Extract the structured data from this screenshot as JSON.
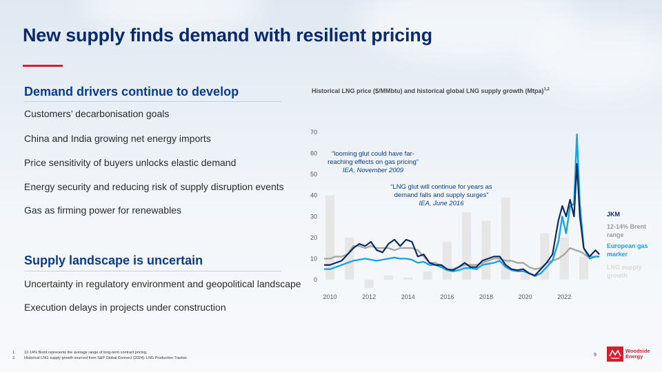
{
  "title": "New supply finds demand with resilient pricing",
  "demand": {
    "heading": "Demand drivers continue to develop",
    "items": [
      "Customers’ decarbonisation goals",
      "China and India growing net energy imports",
      "Price sensitivity of buyers unlocks elastic demand",
      "Energy security and reducing risk of supply disruption events",
      "Gas as firming power for renewables"
    ]
  },
  "supply": {
    "heading": "Supply landscape is uncertain",
    "items": [
      "Uncertainty in regulatory environment and geopolitical landscape",
      "Execution delays in projects under construction"
    ]
  },
  "chart": {
    "title": "Historical LNG price ($/MMbtu) and historical global LNG supply growth (Mtpa)",
    "title_sup": "1,2",
    "quote1": {
      "lines": [
        "“looming glut could have far-",
        "reaching effects on gas pricing”"
      ],
      "source": "IEA, November 2009"
    },
    "quote2": {
      "lines": [
        "“LNG glut will continue for years as",
        "demand falls and supply surges”"
      ],
      "source": "IEA, June 2016"
    }
  },
  "chart_data": {
    "type": "line",
    "title": "Historical LNG price ($/MMbtu) and historical global LNG supply growth (Mtpa)",
    "ylim": [
      0,
      70
    ],
    "yticks": [
      0,
      10,
      20,
      30,
      40,
      50,
      60,
      70
    ],
    "xlim": [
      2009.7,
      2023.9
    ],
    "xticks": [
      2010,
      2012,
      2014,
      2016,
      2018,
      2020,
      2022
    ],
    "bars": {
      "name": "LNG supply growth",
      "x": [
        2010,
        2011,
        2012,
        2013,
        2014,
        2015,
        2016,
        2017,
        2018,
        2019,
        2020,
        2021,
        2022,
        2023
      ],
      "values": [
        40,
        20,
        -4,
        2,
        1,
        4,
        18,
        32,
        28,
        39,
        3,
        22,
        20,
        11
      ]
    },
    "series": [
      {
        "name": "12-14% Brent range",
        "color": "#a6a6a6",
        "x": [
          2009.7,
          2010.0,
          2010.3,
          2010.6,
          2010.9,
          2011.2,
          2011.5,
          2011.8,
          2012.1,
          2012.4,
          2012.7,
          2013.0,
          2013.3,
          2013.6,
          2013.9,
          2014.2,
          2014.5,
          2014.8,
          2015.1,
          2015.4,
          2015.7,
          2016.0,
          2016.3,
          2016.6,
          2016.9,
          2017.2,
          2017.5,
          2017.8,
          2018.1,
          2018.4,
          2018.7,
          2019.0,
          2019.3,
          2019.6,
          2019.9,
          2020.2,
          2020.5,
          2020.8,
          2021.1,
          2021.4,
          2021.7,
          2022.0,
          2022.3,
          2022.6,
          2022.9,
          2023.2,
          2023.5,
          2023.8
        ],
        "values": [
          10,
          10,
          11,
          11,
          12,
          16,
          16,
          15,
          16,
          15,
          15,
          15,
          14,
          15,
          15,
          15,
          14,
          11,
          8,
          8,
          6.5,
          4.5,
          5,
          6,
          7,
          7,
          7,
          8,
          9,
          10,
          10,
          9,
          9,
          8,
          8,
          6,
          5,
          5.5,
          8,
          9,
          10,
          12,
          15,
          14,
          13,
          11,
          11,
          11
        ]
      },
      {
        "name": "European gas marker",
        "color": "#18a3e5",
        "x": [
          2009.7,
          2010.0,
          2010.3,
          2010.6,
          2010.9,
          2011.2,
          2011.5,
          2011.8,
          2012.1,
          2012.4,
          2012.7,
          2013.0,
          2013.3,
          2013.6,
          2013.9,
          2014.2,
          2014.5,
          2014.8,
          2015.1,
          2015.4,
          2015.7,
          2016.0,
          2016.3,
          2016.6,
          2016.9,
          2017.2,
          2017.5,
          2017.8,
          2018.1,
          2018.4,
          2018.7,
          2019.0,
          2019.3,
          2019.6,
          2019.9,
          2020.2,
          2020.5,
          2020.8,
          2021.1,
          2021.4,
          2021.7,
          2021.9,
          2022.1,
          2022.3,
          2022.5,
          2022.65,
          2022.8,
          2023.0,
          2023.3,
          2023.6,
          2023.8
        ],
        "values": [
          5,
          5,
          6,
          7,
          8,
          9,
          9.5,
          10,
          9.5,
          9,
          9.5,
          10,
          10.5,
          10,
          10,
          9.5,
          8,
          8.5,
          7,
          7,
          6,
          4.5,
          4,
          4.5,
          5.5,
          5.5,
          5,
          7,
          7.5,
          8,
          9,
          6,
          4.5,
          4,
          4,
          3,
          1.7,
          3,
          6,
          9,
          18,
          30,
          22,
          35,
          36,
          69,
          36,
          15,
          10,
          11,
          11
        ]
      },
      {
        "name": "JKM",
        "color": "#0b2a5e",
        "x": [
          2009.7,
          2010.0,
          2010.3,
          2010.6,
          2010.9,
          2011.2,
          2011.5,
          2011.8,
          2012.1,
          2012.4,
          2012.7,
          2013.0,
          2013.3,
          2013.6,
          2013.9,
          2014.2,
          2014.5,
          2014.8,
          2015.1,
          2015.4,
          2015.7,
          2016.0,
          2016.3,
          2016.6,
          2016.9,
          2017.2,
          2017.5,
          2017.8,
          2018.1,
          2018.4,
          2018.7,
          2019.0,
          2019.3,
          2019.6,
          2019.9,
          2020.2,
          2020.5,
          2020.8,
          2021.1,
          2021.4,
          2021.7,
          2021.9,
          2022.1,
          2022.3,
          2022.5,
          2022.65,
          2022.8,
          2023.0,
          2023.3,
          2023.6,
          2023.8
        ],
        "values": [
          7,
          7,
          8,
          9,
          12,
          15,
          17,
          16,
          18,
          14,
          13,
          17,
          19,
          16,
          19,
          18,
          11,
          12,
          8,
          7,
          7,
          5,
          4.5,
          6,
          8,
          6,
          6,
          9,
          10,
          11,
          11,
          7,
          5,
          4.5,
          5,
          3,
          2,
          5,
          8,
          12,
          28,
          35,
          30,
          38,
          30,
          55,
          30,
          15,
          11,
          14,
          12
        ]
      }
    ],
    "legend": [
      "JKM",
      "12-14% Brent range",
      "European gas marker",
      "LNG supply growth"
    ]
  },
  "legend": {
    "jkm": "JKM",
    "brent": "12-14% Brent range",
    "euro": "European gas marker",
    "supply": "LNG supply growth"
  },
  "footnotes": [
    {
      "num": "1.",
      "text": "12-14% Brent represents the average range of long-term contract pricing."
    },
    {
      "num": "2.",
      "text": "Historical LNG supply growth sourced from S&P Global Connect (2024): LNG Production Tracker."
    }
  ],
  "page_number": "9",
  "logo": {
    "line1": "Woodside",
    "line2": "Energy"
  },
  "colors": {
    "navy": "#0a2a6b",
    "accent": "#d2202f",
    "jkm": "#0b2a5e",
    "euro": "#18a3e5",
    "brent": "#a6a6a6",
    "bars": "#e6e6e6"
  }
}
